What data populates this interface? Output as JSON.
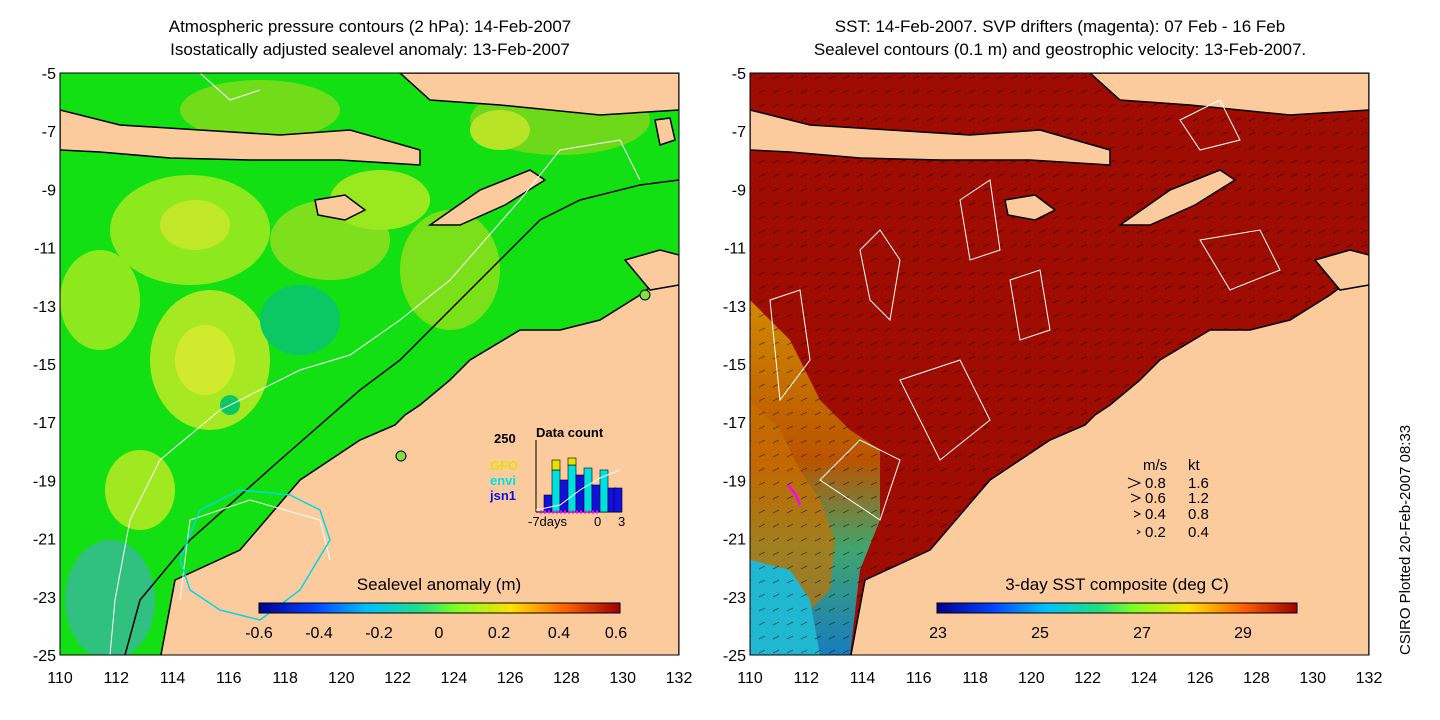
{
  "left_panel": {
    "title_line1": "Atmospheric pressure contours (2 hPa): 14-Feb-2007",
    "title_line2": "Isostatically adjusted sealevel anomaly: 13-Feb-2007",
    "colorbar_label": "Sealevel anomaly (m)",
    "colorbar_ticks": [
      "-0.6",
      "-0.4",
      "-0.2",
      "0",
      "0.2",
      "0.4",
      "0.6"
    ],
    "inset": {
      "max_label": "250",
      "title": "Data count",
      "xtick_left": "-7days",
      "xtick_mid": "0",
      "xtick_right": "3",
      "legend": [
        {
          "label": "GFO",
          "color": "#e8e000"
        },
        {
          "label": "envi",
          "color": "#00e0e0"
        },
        {
          "label": "jsn1",
          "color": "#1010e0"
        }
      ]
    }
  },
  "right_panel": {
    "title_line1": "SST: 14-Feb-2007. SVP drifters (magenta): 07 Feb - 16 Feb",
    "title_line2": "Sealevel contours (0.1 m) and geostrophic velocity: 13-Feb-2007.",
    "colorbar_label": "3-day SST composite (deg C)",
    "colorbar_ticks": [
      "23",
      "25",
      "27",
      "29"
    ],
    "velocity_legend": {
      "header_ms": "m/s",
      "header_kt": "kt",
      "rows": [
        {
          "ms": "0.8",
          "kt": "1.6"
        },
        {
          "ms": "0.6",
          "kt": "1.2"
        },
        {
          "ms": "0.4",
          "kt": "0.8"
        },
        {
          "ms": "0.2",
          "kt": "0.4"
        }
      ]
    }
  },
  "axes": {
    "y_ticks": [
      "-5",
      "-7",
      "-9",
      "-11",
      "-13",
      "-15",
      "-17",
      "-19",
      "-21",
      "-23",
      "-25"
    ],
    "x_ticks": [
      "110",
      "112",
      "114",
      "116",
      "118",
      "120",
      "122",
      "124",
      "126",
      "128",
      "130",
      "132"
    ],
    "lat_range": [
      -25,
      -5
    ],
    "lon_range": [
      110,
      132
    ]
  },
  "credit": "CSIRO Plotted 20-Feb-2007 08:33",
  "colors": {
    "land": "#fbcb9d",
    "sla_ocean": "#12e012",
    "sla_shelf": "#1cd81c",
    "sst_ocean": "#9e0c02",
    "coast": "#000000"
  }
}
